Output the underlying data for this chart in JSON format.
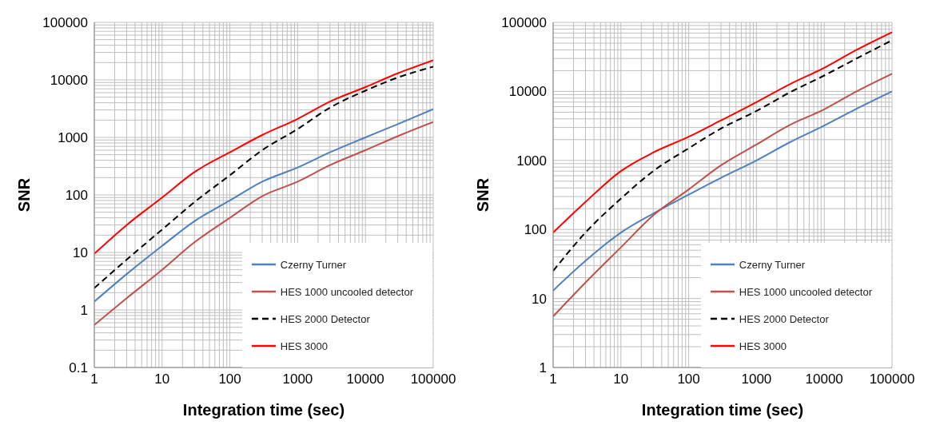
{
  "chart_data": [
    {
      "type": "line",
      "xlabel": "Integration time (sec)",
      "ylabel": "SNR",
      "log": "xy",
      "grid": true,
      "legend": "bottom right",
      "marker": "none",
      "xlim": [
        1,
        100000
      ],
      "xticks": [
        1,
        10,
        100,
        1000,
        10000,
        100000
      ],
      "ylim": [
        0.1,
        100000
      ],
      "yticks": [
        0.1,
        1,
        10,
        100,
        1000,
        10000,
        100000
      ],
      "x": [
        1,
        3,
        10,
        30,
        100,
        300,
        1000,
        3000,
        10000,
        30000,
        100000
      ],
      "series": [
        {
          "name": "Czerny Turner",
          "color": "#4f81bd",
          "line_style": "solid",
          "values": [
            1.4,
            4.2,
            13,
            35,
            80,
            170,
            300,
            550,
            1000,
            1700,
            3100
          ]
        },
        {
          "name": "HES 1000 uncooled detector",
          "color": "#c0504d",
          "line_style": "solid",
          "values": [
            0.55,
            1.6,
            5,
            15,
            40,
            95,
            170,
            330,
            600,
            1050,
            1850
          ]
        },
        {
          "name": "HES 2000 Detector",
          "color": "#000000",
          "line_style": "dashed",
          "values": [
            2.4,
            7.5,
            25,
            75,
            220,
            600,
            1400,
            3300,
            6500,
            11000,
            17000
          ]
        },
        {
          "name": "HES 3000",
          "color": "#ff0000",
          "line_style": "solid",
          "values": [
            9.5,
            30,
            90,
            250,
            550,
            1100,
            2100,
            4200,
            7500,
            13000,
            22000
          ]
        }
      ]
    },
    {
      "type": "line",
      "xlabel": "Integration time (sec)",
      "ylabel": "SNR",
      "log": "xy",
      "grid": true,
      "legend": "bottom right",
      "marker": "none",
      "xlim": [
        1,
        100000
      ],
      "xticks": [
        1,
        10,
        100,
        1000,
        10000,
        100000
      ],
      "ylim": [
        1,
        100000
      ],
      "yticks": [
        1,
        10,
        100,
        1000,
        10000,
        100000
      ],
      "x": [
        1,
        3,
        10,
        30,
        100,
        300,
        1000,
        3000,
        10000,
        30000,
        100000
      ],
      "series": [
        {
          "name": "Czerny Turner",
          "color": "#4f81bd",
          "line_style": "solid",
          "values": [
            13,
            35,
            90,
            170,
            320,
            560,
            1000,
            1800,
            3200,
            5600,
            10000
          ]
        },
        {
          "name": "HES 1000 uncooled detector",
          "color": "#c0504d",
          "line_style": "solid",
          "values": [
            5.5,
            17,
            55,
            160,
            380,
            850,
            1700,
            3200,
            5500,
            10000,
            18000
          ]
        },
        {
          "name": "HES 2000 Detector",
          "color": "#000000",
          "line_style": "dashed",
          "values": [
            25,
            90,
            280,
            700,
            1500,
            2900,
            5200,
            9500,
            17000,
            30000,
            55000
          ]
        },
        {
          "name": "HES 3000",
          "color": "#ff0000",
          "line_style": "solid",
          "values": [
            90,
            250,
            700,
            1300,
            2200,
            3800,
            7000,
            12500,
            22000,
            40000,
            72000
          ]
        }
      ]
    }
  ]
}
